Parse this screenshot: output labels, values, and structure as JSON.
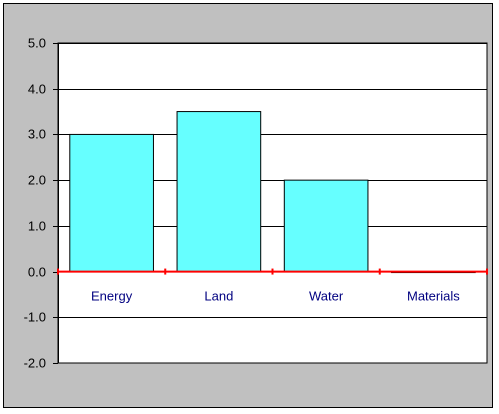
{
  "chart_data": {
    "type": "bar",
    "categories": [
      "Energy",
      "Land",
      "Water",
      "Materials"
    ],
    "values": [
      3.0,
      3.5,
      2.0,
      -0.02
    ],
    "title": "",
    "xlabel": "",
    "ylabel": "",
    "ylim": [
      -2.0,
      5.0
    ],
    "yticks": [
      "5.0",
      "4.0",
      "3.0",
      "2.0",
      "1.0",
      "0.0",
      "-1.0",
      "-2.0"
    ],
    "grid": true,
    "legend": "none",
    "colors": {
      "bar_fill": "#66ffff",
      "bar_stroke": "#000000",
      "zero_line": "#ff0000",
      "plot_area": "#ffffff",
      "chart_area": "#c0c0c0",
      "gridline": "#000000",
      "category_text": "#000080"
    }
  }
}
